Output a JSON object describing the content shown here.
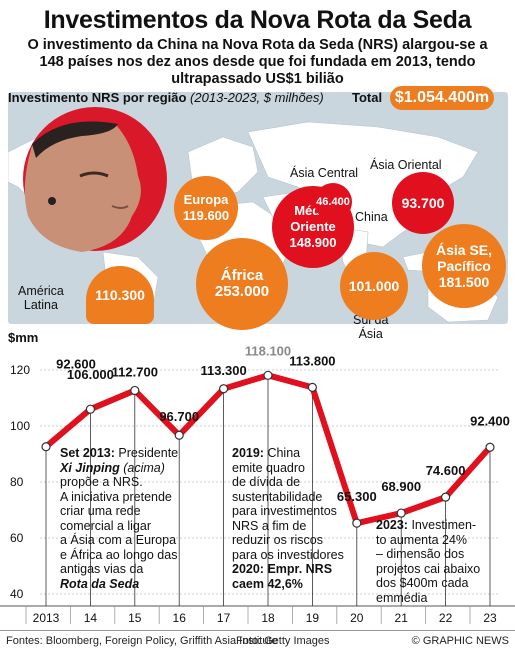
{
  "title": "Investimentos da Nova Rota da Seda",
  "subtitle_lines": [
    "O investimento da China na Nova Rota da Seda (NRS) alargou-se a",
    "148 países nos dez anos desde que foi fundada em 2013, tendo",
    "ultrapassado US$1 bilião"
  ],
  "map": {
    "header_bold": "Investimento NRS por região",
    "header_italic": "(2013-2023, $ milhões)",
    "total_label": "Total",
    "total_value": "$1.054.400m",
    "regions": [
      {
        "name": "Europa",
        "value": "119.600",
        "color": "#ee7d1f"
      },
      {
        "name": "Médio Oriente",
        "name_lines": [
          "Médio",
          "Oriente"
        ],
        "value": "148.900",
        "color": "#e0101e"
      },
      {
        "name": "Ásia Central",
        "value": "46.400",
        "color": "#e0101e"
      },
      {
        "name": "Ásia Oriental",
        "value": "93.700",
        "color": "#e0101e"
      },
      {
        "name": "América Latina",
        "name_lines": [
          "América",
          "Latina"
        ],
        "value": "110.300",
        "color": "#ee7d1f"
      },
      {
        "name": "África",
        "value": "253.000",
        "color": "#ee7d1f"
      },
      {
        "name": "Sul da Ásia",
        "name_lines": [
          "Sul da",
          "Ásia"
        ],
        "value": "101.000",
        "color": "#ee7d1f"
      },
      {
        "name": "Ásia SE, Pacífico",
        "name_lines": [
          "Ásia SE,",
          "Pacífico"
        ],
        "value": "181.500",
        "color": "#ee7d1f"
      }
    ],
    "place_labels": {
      "china": "China"
    }
  },
  "chart_data": {
    "type": "line",
    "ylabel": "$mm",
    "ylim": [
      40,
      130
    ],
    "yticks": [
      40,
      60,
      80,
      100,
      120
    ],
    "x": [
      "2013-09",
      "2014",
      "2015",
      "2016",
      "2017",
      "2018",
      "2019",
      "2019-06",
      "2020",
      "2021",
      "2022",
      "2023"
    ],
    "x_tick_labels": [
      "2013",
      "14",
      "15",
      "16",
      "17",
      "18",
      "19",
      "20",
      "21",
      "22",
      "23"
    ],
    "series": [
      {
        "color": "#e0101e",
        "points": [
          {
            "x": 2013.0,
            "y": 92.6,
            "label": "92.600"
          },
          {
            "x": 2014.0,
            "y": 106.0,
            "label": "106.000"
          },
          {
            "x": 2015.0,
            "y": 112.7,
            "label": "112.700"
          },
          {
            "x": 2016.0,
            "y": 96.7,
            "label": "96.700"
          },
          {
            "x": 2017.0,
            "y": 113.3,
            "label": "113.300"
          },
          {
            "x": 2018.0,
            "y": 118.1,
            "label": "118.100"
          },
          {
            "x": 2019.0,
            "y": 113.8,
            "label": "113.800"
          },
          {
            "x": 2020.0,
            "y": 65.3,
            "label": "65.300"
          },
          {
            "x": 2021.0,
            "y": 68.9,
            "label": "68.900"
          },
          {
            "x": 2022.0,
            "y": 74.6,
            "label": "74.600"
          },
          {
            "x": 2023.0,
            "y": 92.4,
            "label": "92.400"
          }
        ]
      }
    ]
  },
  "annotations": {
    "a2013": {
      "year": "Set 2013:",
      "rest1": " Presidente",
      "name": "Xi Jinping",
      "paren": " (acima)",
      "lines": [
        "propõe a NRS.",
        "A iniciativa pretende",
        "criar uma rede",
        "comercial a ligar",
        "a Ásia com a Europa",
        "e África ao longo das",
        "antigas vias da"
      ],
      "last": "Rota da Seda"
    },
    "a2019": {
      "year": "2019:",
      "rest1": " China",
      "lines": [
        "emite quadro",
        "de dívida de",
        "sustentabilidade",
        "para investimentos",
        "NRS a fim de",
        "reduzir os riscos",
        "para os investidores"
      ],
      "line2020": "2020: Empr. NRS",
      "line2020b": "caem 42,6%"
    },
    "a2023": {
      "year": "2023:",
      "rest1": " Investimen-",
      "lines": [
        "to aumenta 24%",
        "– dimensão dos",
        "projetos cai abaixo",
        "dos $400m cada",
        "emmédia"
      ]
    }
  },
  "watermark": "GRAPHIC NEWS",
  "footer": {
    "sources": "Fontes: Bloomberg, Foreign Policy, Griffith Asia Institute",
    "photo": "Foto: Getty Images",
    "brand": "© GRAPHIC NEWS"
  }
}
